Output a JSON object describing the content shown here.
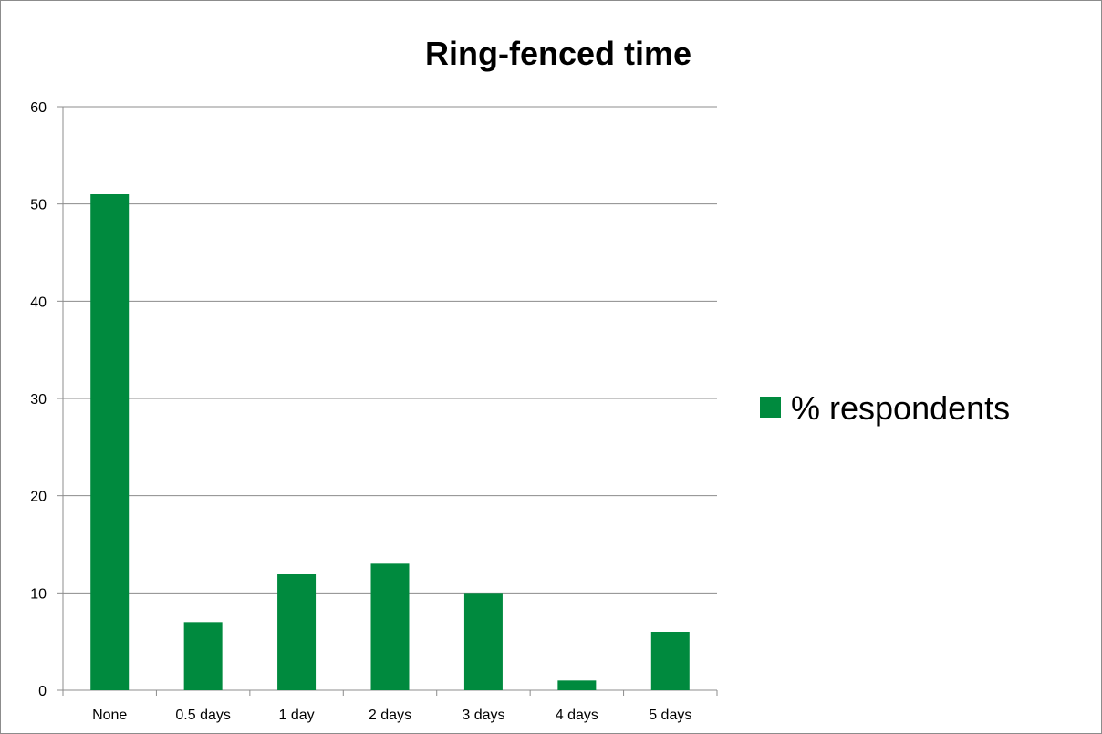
{
  "chart_data": {
    "type": "bar",
    "title": "Ring-fenced time",
    "xlabel": "",
    "ylabel": "",
    "categories": [
      "None",
      "0.5 days",
      "1 day",
      "2 days",
      "3 days",
      "4 days",
      "5 days"
    ],
    "series": [
      {
        "name": "% respondents",
        "values": [
          51,
          7,
          12,
          13,
          10,
          1,
          6
        ],
        "color": "#008a3e"
      }
    ],
    "ylim": [
      0,
      60
    ],
    "yticks": [
      "0",
      "10",
      "20",
      "30",
      "40",
      "50",
      "60"
    ],
    "grid": true,
    "legend_position": "right"
  }
}
